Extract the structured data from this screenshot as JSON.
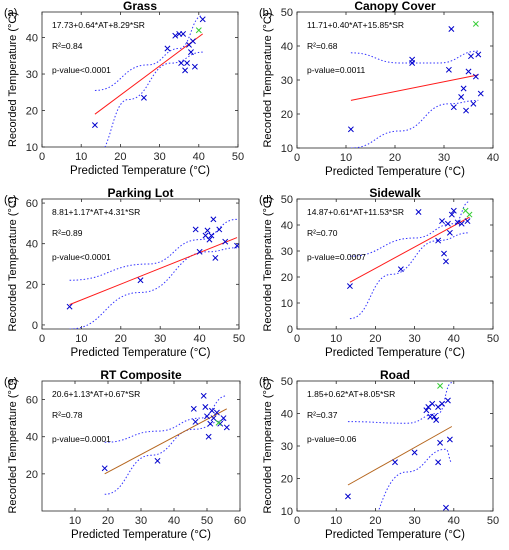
{
  "figure": {
    "colors": {
      "axis": "#262626",
      "marker_blue": "#0000cc",
      "marker_green": "#33cc33",
      "fit_red": "#ff1a1a",
      "fit_brown": "#b5651d",
      "ci_blue": "#3333ff"
    }
  },
  "chart_data": [
    {
      "type": "scatter",
      "panel_label": "(a)",
      "title": "Grass",
      "xlabel": "Predicted Temperature (°C)",
      "ylabel": "Recorded Temperature (°C)",
      "xlim": [
        0,
        50
      ],
      "ylim": [
        10,
        47
      ],
      "xticks": [
        0,
        10,
        20,
        30,
        40,
        50
      ],
      "yticks": [
        10,
        20,
        30,
        40
      ],
      "equation": "17.73+0.64*AT+8.29*SR",
      "r2": "R²=0.84",
      "pvalue": "p-value<0.0001",
      "fit_color": "red",
      "points_blue": [
        [
          13.5,
          16
        ],
        [
          26,
          23.5
        ],
        [
          32,
          37
        ],
        [
          34,
          40.5
        ],
        [
          35,
          41
        ],
        [
          35.5,
          33
        ],
        [
          36,
          41
        ],
        [
          36.5,
          31
        ],
        [
          37.5,
          38
        ],
        [
          38,
          36
        ],
        [
          38.5,
          39
        ],
        [
          37,
          33
        ],
        [
          39,
          32
        ],
        [
          41,
          45
        ]
      ],
      "points_green": [
        [
          40,
          42
        ]
      ],
      "fit_line": [
        [
          13.5,
          19
        ],
        [
          41,
          41
        ]
      ],
      "ci_upper": [
        [
          13.5,
          25.5
        ],
        [
          27,
          32.5
        ],
        [
          35,
          37
        ],
        [
          41,
          46
        ]
      ],
      "ci_lower": [
        [
          13.5,
          7.5
        ],
        [
          22,
          23
        ],
        [
          33,
          33
        ],
        [
          41,
          36
        ]
      ]
    },
    {
      "type": "scatter",
      "panel_label": "(b)",
      "title": "Canopy Cover",
      "xlabel": "Predicted Temperature (°C)",
      "ylabel": "Recorded Temperature (°C)",
      "xlim": [
        0,
        40
      ],
      "ylim": [
        10,
        50
      ],
      "xticks": [
        0,
        10,
        20,
        30,
        40
      ],
      "yticks": [
        10,
        20,
        30,
        40,
        50
      ],
      "equation": "11.71+0.40*AT+15.85*SR",
      "r2": "R²=0.68",
      "pvalue": "p-value=0.0011",
      "fit_color": "red",
      "points_blue": [
        [
          11,
          15.5
        ],
        [
          23.5,
          35
        ],
        [
          23.5,
          36
        ],
        [
          31,
          33
        ],
        [
          31.5,
          45
        ],
        [
          32,
          22
        ],
        [
          33.5,
          25
        ],
        [
          34,
          27.5
        ],
        [
          34.5,
          21
        ],
        [
          35,
          32.5
        ],
        [
          35.5,
          37
        ],
        [
          36,
          23
        ],
        [
          36.5,
          31
        ],
        [
          37,
          37.5
        ],
        [
          37.5,
          26
        ]
      ],
      "points_green": [
        [
          36.5,
          46.5
        ]
      ],
      "fit_line": [
        [
          11,
          24
        ],
        [
          37,
          31.5
        ]
      ],
      "ci_upper": [
        [
          11,
          38
        ],
        [
          21,
          35
        ],
        [
          29,
          35
        ],
        [
          37,
          38.5
        ]
      ],
      "ci_lower": [
        [
          11,
          10
        ],
        [
          21,
          15
        ],
        [
          31,
          23
        ],
        [
          37,
          24
        ]
      ]
    },
    {
      "type": "scatter",
      "panel_label": "(c)",
      "title": "Parking Lot",
      "xlabel": "Predicted Temperature (°C)",
      "ylabel": "Recorded Temperature (°C)",
      "xlim": [
        0,
        50
      ],
      "ylim": [
        -2,
        62
      ],
      "xticks": [
        0,
        10,
        20,
        30,
        40,
        50
      ],
      "yticks": [
        0,
        20,
        40,
        60
      ],
      "equation": "8.81+1.17*AT+4.31*SR",
      "r2": "R²=0.89",
      "pvalue": "p-value<0.0001",
      "fit_color": "red",
      "points_blue": [
        [
          7,
          9
        ],
        [
          25,
          22
        ],
        [
          39,
          47
        ],
        [
          40,
          36
        ],
        [
          41.5,
          44
        ],
        [
          42,
          46.5
        ],
        [
          42.5,
          42
        ],
        [
          43,
          44
        ],
        [
          43.5,
          52
        ],
        [
          44,
          33
        ],
        [
          45,
          47
        ],
        [
          46.5,
          41
        ],
        [
          49.5,
          39
        ]
      ],
      "points_green": [],
      "fit_line": [
        [
          7,
          10
        ],
        [
          49.5,
          43
        ]
      ],
      "ci_upper": [
        [
          7,
          22
        ],
        [
          27,
          30
        ],
        [
          40,
          42
        ],
        [
          49.5,
          52
        ]
      ],
      "ci_lower": [
        [
          7,
          -2
        ],
        [
          25,
          16
        ],
        [
          42,
          36
        ],
        [
          49.5,
          38
        ]
      ]
    },
    {
      "type": "scatter",
      "panel_label": "(d)",
      "title": "Sidewalk",
      "xlabel": "Predicted Temperature (°C)",
      "ylabel": "Recorded Temperature (°C)",
      "xlim": [
        0,
        50
      ],
      "ylim": [
        0,
        50
      ],
      "xticks": [
        0,
        10,
        20,
        30,
        40,
        50
      ],
      "yticks": [
        0,
        10,
        20,
        30,
        40,
        50
      ],
      "equation": "14.87+0.61*AT+11.53*SR",
      "r2": "R²=0.70",
      "pvalue": "p-value=0.0007",
      "fit_color": "red",
      "points_blue": [
        [
          13.5,
          16.5
        ],
        [
          26.5,
          23
        ],
        [
          31,
          45
        ],
        [
          36,
          34
        ],
        [
          37,
          41.5
        ],
        [
          37.5,
          29
        ],
        [
          38,
          26
        ],
        [
          38.5,
          40.5
        ],
        [
          39,
          37
        ],
        [
          39.5,
          44
        ],
        [
          40,
          45.5
        ],
        [
          41,
          41
        ],
        [
          42,
          40.5
        ],
        [
          43.5,
          41.5
        ]
      ],
      "points_green": [
        [
          43,
          45.5
        ],
        [
          44,
          44
        ]
      ],
      "fit_line": [
        [
          13.5,
          18
        ],
        [
          44,
          43
        ]
      ],
      "ci_upper": [
        [
          13.5,
          28
        ],
        [
          30,
          35
        ],
        [
          40,
          40.5
        ],
        [
          44,
          49
        ]
      ],
      "ci_lower": [
        [
          13.5,
          4
        ],
        [
          24,
          21
        ],
        [
          36,
          34
        ],
        [
          44,
          37
        ]
      ]
    },
    {
      "type": "scatter",
      "panel_label": "(e)",
      "title": "RT Composite",
      "xlabel": "Predicted Temperature (°C)",
      "ylabel": "Recorded Temperature (°C)",
      "xlim": [
        0,
        60
      ],
      "ylim": [
        0,
        70
      ],
      "xticks": [
        10,
        20,
        30,
        40,
        50,
        60
      ],
      "yticks": [
        20,
        40,
        60
      ],
      "equation": "20.6+1.13*AT+0.67*SR",
      "r2": "R²=0.78",
      "pvalue": "p-value=0.0001",
      "fit_color": "brown",
      "points_blue": [
        [
          19,
          23
        ],
        [
          35,
          27
        ],
        [
          46,
          55
        ],
        [
          46.5,
          48
        ],
        [
          49,
          62
        ],
        [
          49.5,
          56
        ],
        [
          50,
          51
        ],
        [
          50.5,
          40
        ],
        [
          51,
          47
        ],
        [
          51.5,
          54
        ],
        [
          52,
          50
        ],
        [
          53,
          53
        ],
        [
          54,
          47
        ],
        [
          55,
          50
        ],
        [
          56,
          45
        ]
      ],
      "points_green": [
        [
          53.5,
          47.5
        ]
      ],
      "fit_line": [
        [
          19,
          20
        ],
        [
          56,
          55
        ]
      ],
      "ci_upper": [
        [
          19,
          37
        ],
        [
          35,
          43
        ],
        [
          48,
          50
        ],
        [
          56,
          62
        ]
      ],
      "ci_lower": [
        [
          19,
          9
        ],
        [
          33,
          30
        ],
        [
          46,
          44
        ],
        [
          56,
          49
        ]
      ]
    },
    {
      "type": "scatter",
      "panel_label": "(f)",
      "title": "Road",
      "xlabel": "Predicted Temperature (°C)",
      "ylabel": "Recorded Temperature (°C)",
      "xlim": [
        0,
        50
      ],
      "ylim": [
        10,
        50
      ],
      "xticks": [
        0,
        10,
        20,
        30,
        40,
        50
      ],
      "yticks": [
        10,
        20,
        30,
        40,
        50
      ],
      "equation": "1.85+0.62*AT+8.05*SR",
      "r2": "R²=0.37",
      "pvalue": "p-value=0.06",
      "fit_color": "brown",
      "points_blue": [
        [
          13,
          14.5
        ],
        [
          25,
          25
        ],
        [
          30,
          28
        ],
        [
          33,
          41
        ],
        [
          33.5,
          42
        ],
        [
          34,
          39
        ],
        [
          34.5,
          43
        ],
        [
          35,
          39
        ],
        [
          35.5,
          38
        ],
        [
          36,
          42
        ],
        [
          36,
          25
        ],
        [
          36.5,
          31
        ],
        [
          37,
          43
        ],
        [
          38,
          11
        ],
        [
          38.5,
          44
        ],
        [
          39,
          32
        ]
      ],
      "points_green": [
        [
          36.5,
          48.5
        ]
      ],
      "fit_line": [
        [
          13,
          18
        ],
        [
          39.5,
          36
        ]
      ],
      "ci_upper": [
        [
          13,
          37.5
        ],
        [
          28,
          37
        ],
        [
          36,
          40
        ],
        [
          39.5,
          49.5
        ]
      ],
      "ci_lower": [
        [
          13,
          -4
        ],
        [
          28,
          22
        ],
        [
          38,
          29
        ],
        [
          39.5,
          25
        ]
      ]
    }
  ]
}
